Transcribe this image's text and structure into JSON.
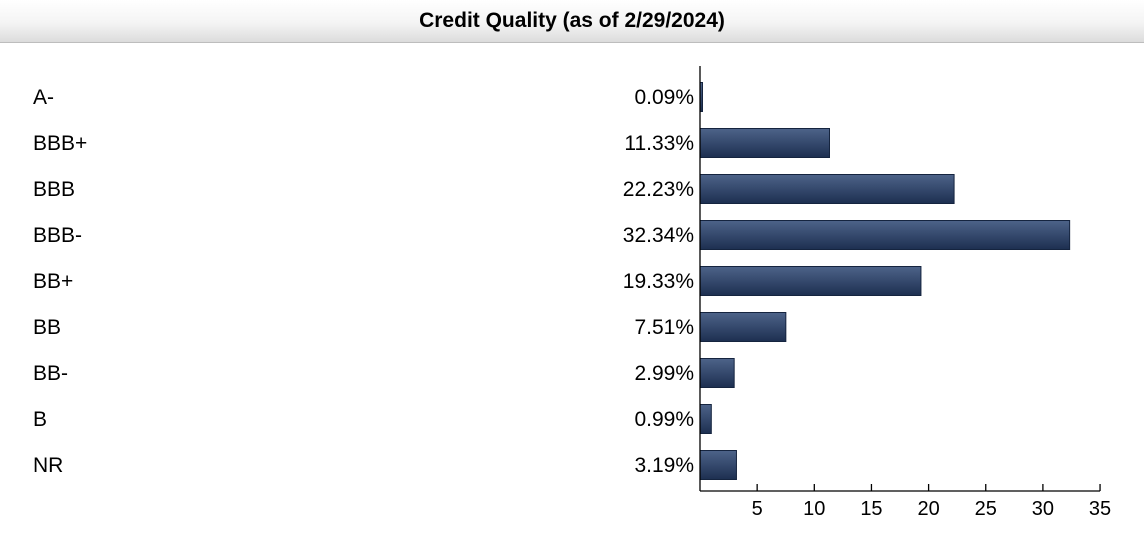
{
  "header": {
    "title": "Credit Quality (as of 2/29/2024)"
  },
  "colors": {
    "bar_top": "#4d6389",
    "bar_bottom": "#1d2f50",
    "bar_edge": "#15243f"
  },
  "chart_data": {
    "type": "bar",
    "orientation": "horizontal",
    "title": "Credit Quality (as of 2/29/2024)",
    "categories": [
      "A-",
      "BBB+",
      "BBB",
      "BBB-",
      "BB+",
      "BB",
      "BB-",
      "B",
      "NR"
    ],
    "values": [
      0.09,
      11.33,
      22.23,
      32.34,
      19.33,
      7.51,
      2.99,
      0.99,
      3.19
    ],
    "value_labels": [
      "0.09%",
      "11.33%",
      "22.23%",
      "32.34%",
      "19.33%",
      "7.51%",
      "2.99%",
      "0.99%",
      "3.19%"
    ],
    "xlim": [
      0,
      35
    ],
    "xticks": [
      5,
      10,
      15,
      20,
      25,
      30,
      35
    ],
    "grid": false,
    "legend": "none"
  }
}
